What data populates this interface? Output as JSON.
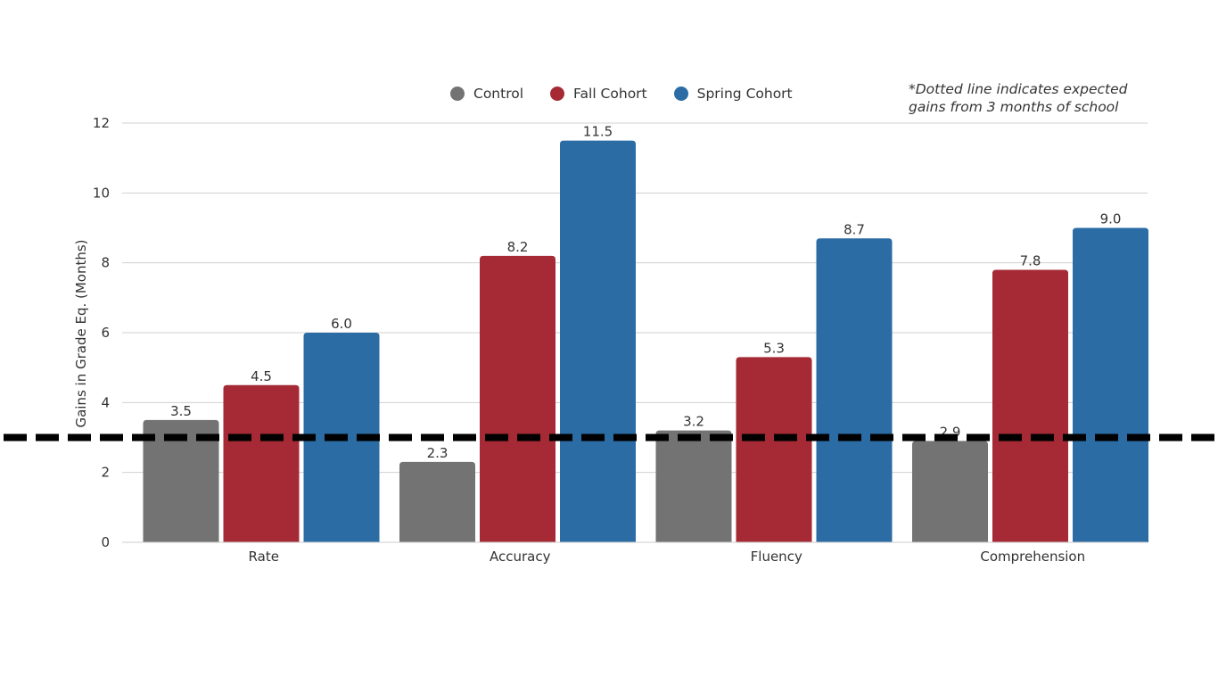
{
  "chart_data": {
    "type": "bar",
    "categories": [
      "Rate",
      "Accuracy",
      "Fluency",
      "Comprehension"
    ],
    "series": [
      {
        "name": "Control",
        "color": "#737373",
        "values": [
          3.5,
          2.3,
          3.2,
          2.9
        ]
      },
      {
        "name": "Fall Cohort",
        "color": "#a52a35",
        "values": [
          4.5,
          8.2,
          5.3,
          7.8
        ]
      },
      {
        "name": "Spring Cohort",
        "color": "#2b6ca5",
        "values": [
          6.0,
          11.5,
          8.7,
          9.0
        ]
      }
    ],
    "ylabel": "Gains in Grade Eq. (Months)",
    "xlabel": "",
    "ylim": [
      0,
      12
    ],
    "yticks": [
      0,
      2,
      4,
      6,
      8,
      10,
      12
    ],
    "grid": true,
    "legend_position": "top-center",
    "reference_line": {
      "value": 3,
      "style": "dashed",
      "color": "#000000"
    },
    "annotation": {
      "line1": "*Dotted line indicates expected",
      "line2": "gains from 3 months of school"
    }
  }
}
